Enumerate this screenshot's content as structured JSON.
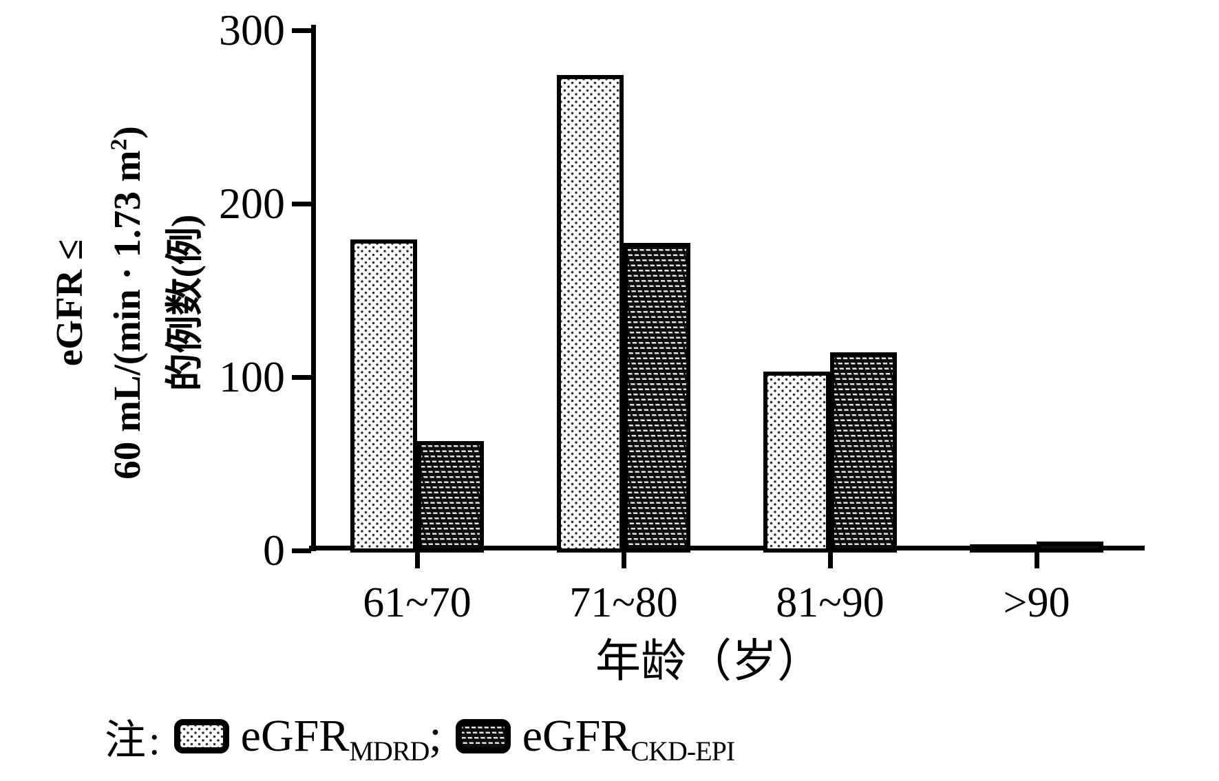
{
  "figure": {
    "background": "#ffffff",
    "ink": "#000000"
  },
  "chart_data": {
    "type": "bar",
    "title": "",
    "categories": [
      "61~70",
      "71~80",
      "81~90",
      ">90"
    ],
    "series": [
      {
        "name": "eGFR MDRD",
        "pattern": "dots",
        "fill": "#fbfbfb",
        "values": [
          178,
          273,
          102,
          2
        ]
      },
      {
        "name": "eGFR CKD-EPI",
        "pattern": "dashes",
        "fill": "#0d0d0d",
        "values": [
          62,
          176,
          113,
          4
        ]
      }
    ],
    "ylim": [
      0,
      300
    ],
    "yticks": [
      0,
      100,
      200,
      300
    ],
    "grid": false,
    "xlabel": "年龄（岁）",
    "ylabel": {
      "line1": "eGFR ≤",
      "line2_pre": "60 mL/(min · 1.73 m",
      "line2_sup": "2",
      "line2_post": ")",
      "line3": "的例数(例)"
    },
    "legend": {
      "position": "bottom-left",
      "prefix": "注:",
      "items": [
        {
          "base": "eGFR",
          "sub": "MDRD",
          "suffix": ";"
        },
        {
          "base": "eGFR",
          "sub": "CKD-EPI",
          "suffix": ""
        }
      ]
    }
  }
}
